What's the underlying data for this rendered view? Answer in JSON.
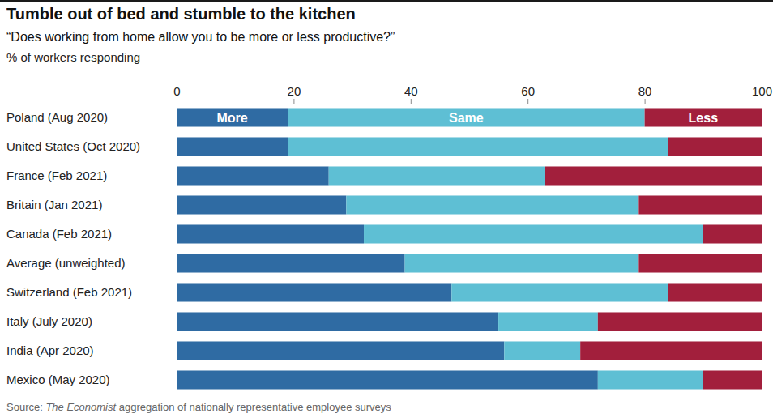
{
  "chart_data": {
    "type": "bar",
    "orientation": "horizontal",
    "stacked": true,
    "title": "Tumble out of bed and stumble to the kitchen",
    "subtitle": "“Does working from home allow you to be more or less productive?”",
    "axis_label": "% of workers responding",
    "source": [
      "Source: ",
      "The Economist",
      " aggregation of nationally representative employee surveys"
    ],
    "categories": [
      "Poland (Aug 2020)",
      "United States (Oct 2020)",
      "France (Feb 2021)",
      "Britain (Jan 2021)",
      "Canada (Feb 2021)",
      "Average (unweighted)",
      "Switzerland (Feb 2021)",
      "Italy (July 2020)",
      "India (Apr 2020)",
      "Mexico (May 2020)"
    ],
    "series": [
      {
        "name": "More",
        "color": "#2f6ba3",
        "values": [
          19,
          19,
          26,
          29,
          32,
          39,
          47,
          55,
          56,
          72
        ]
      },
      {
        "name": "Same",
        "color": "#5ebfd4",
        "values": [
          61,
          65,
          37,
          50,
          58,
          40,
          37,
          17,
          13,
          18
        ]
      },
      {
        "name": "Less",
        "color": "#a21f3c",
        "values": [
          20,
          16,
          37,
          21,
          10,
          21,
          16,
          28,
          31,
          10
        ]
      }
    ],
    "xlim": [
      0,
      100
    ],
    "xticks": [
      0,
      20,
      40,
      60,
      80,
      100
    ],
    "grid": false
  }
}
